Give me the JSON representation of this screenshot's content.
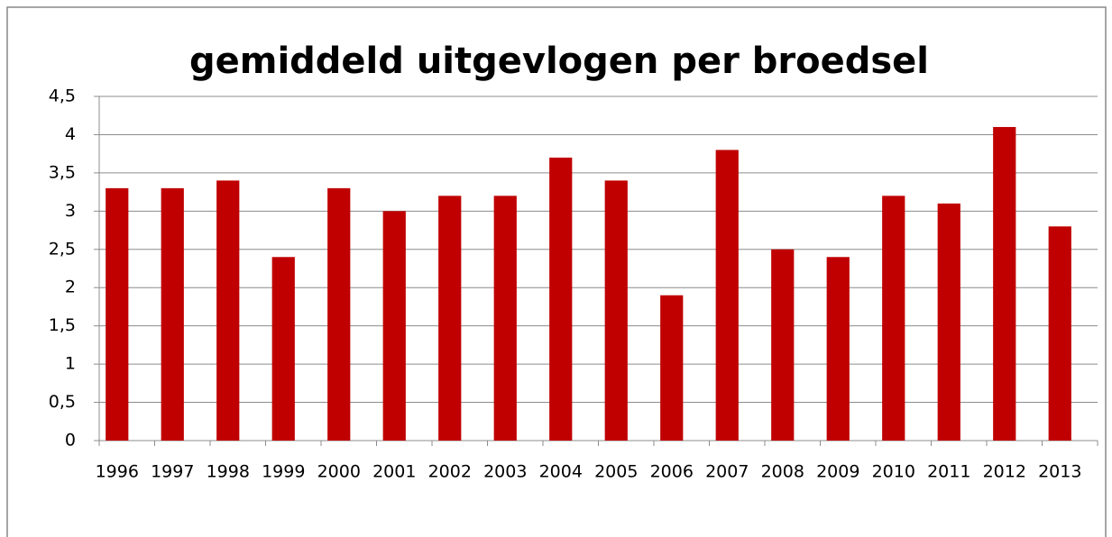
{
  "chart_data": {
    "type": "bar",
    "title": "gemiddeld uitgevlogen per broedsel",
    "categories": [
      "1996",
      "1997",
      "1998",
      "1999",
      "2000",
      "2001",
      "2002",
      "2003",
      "2004",
      "2005",
      "2006",
      "2007",
      "2008",
      "2009",
      "2010",
      "2011",
      "2012",
      "2013"
    ],
    "values": [
      3.3,
      3.3,
      3.4,
      2.4,
      3.3,
      3.0,
      3.2,
      3.2,
      3.7,
      3.4,
      1.9,
      3.8,
      2.5,
      2.4,
      3.2,
      3.1,
      4.1,
      2.8
    ],
    "color": "#c00000",
    "ylim": [
      0,
      4.5
    ],
    "yticks": [
      0,
      {
        "value": 0.5,
        "label": "0,5"
      },
      1,
      {
        "value": 1.5,
        "label": "1,5"
      },
      2,
      {
        "value": 2.5,
        "label": "2,5"
      },
      3,
      {
        "value": 3.5,
        "label": "3,5"
      },
      4,
      {
        "value": 4.5,
        "label": "4,5"
      }
    ],
    "grid": true
  }
}
